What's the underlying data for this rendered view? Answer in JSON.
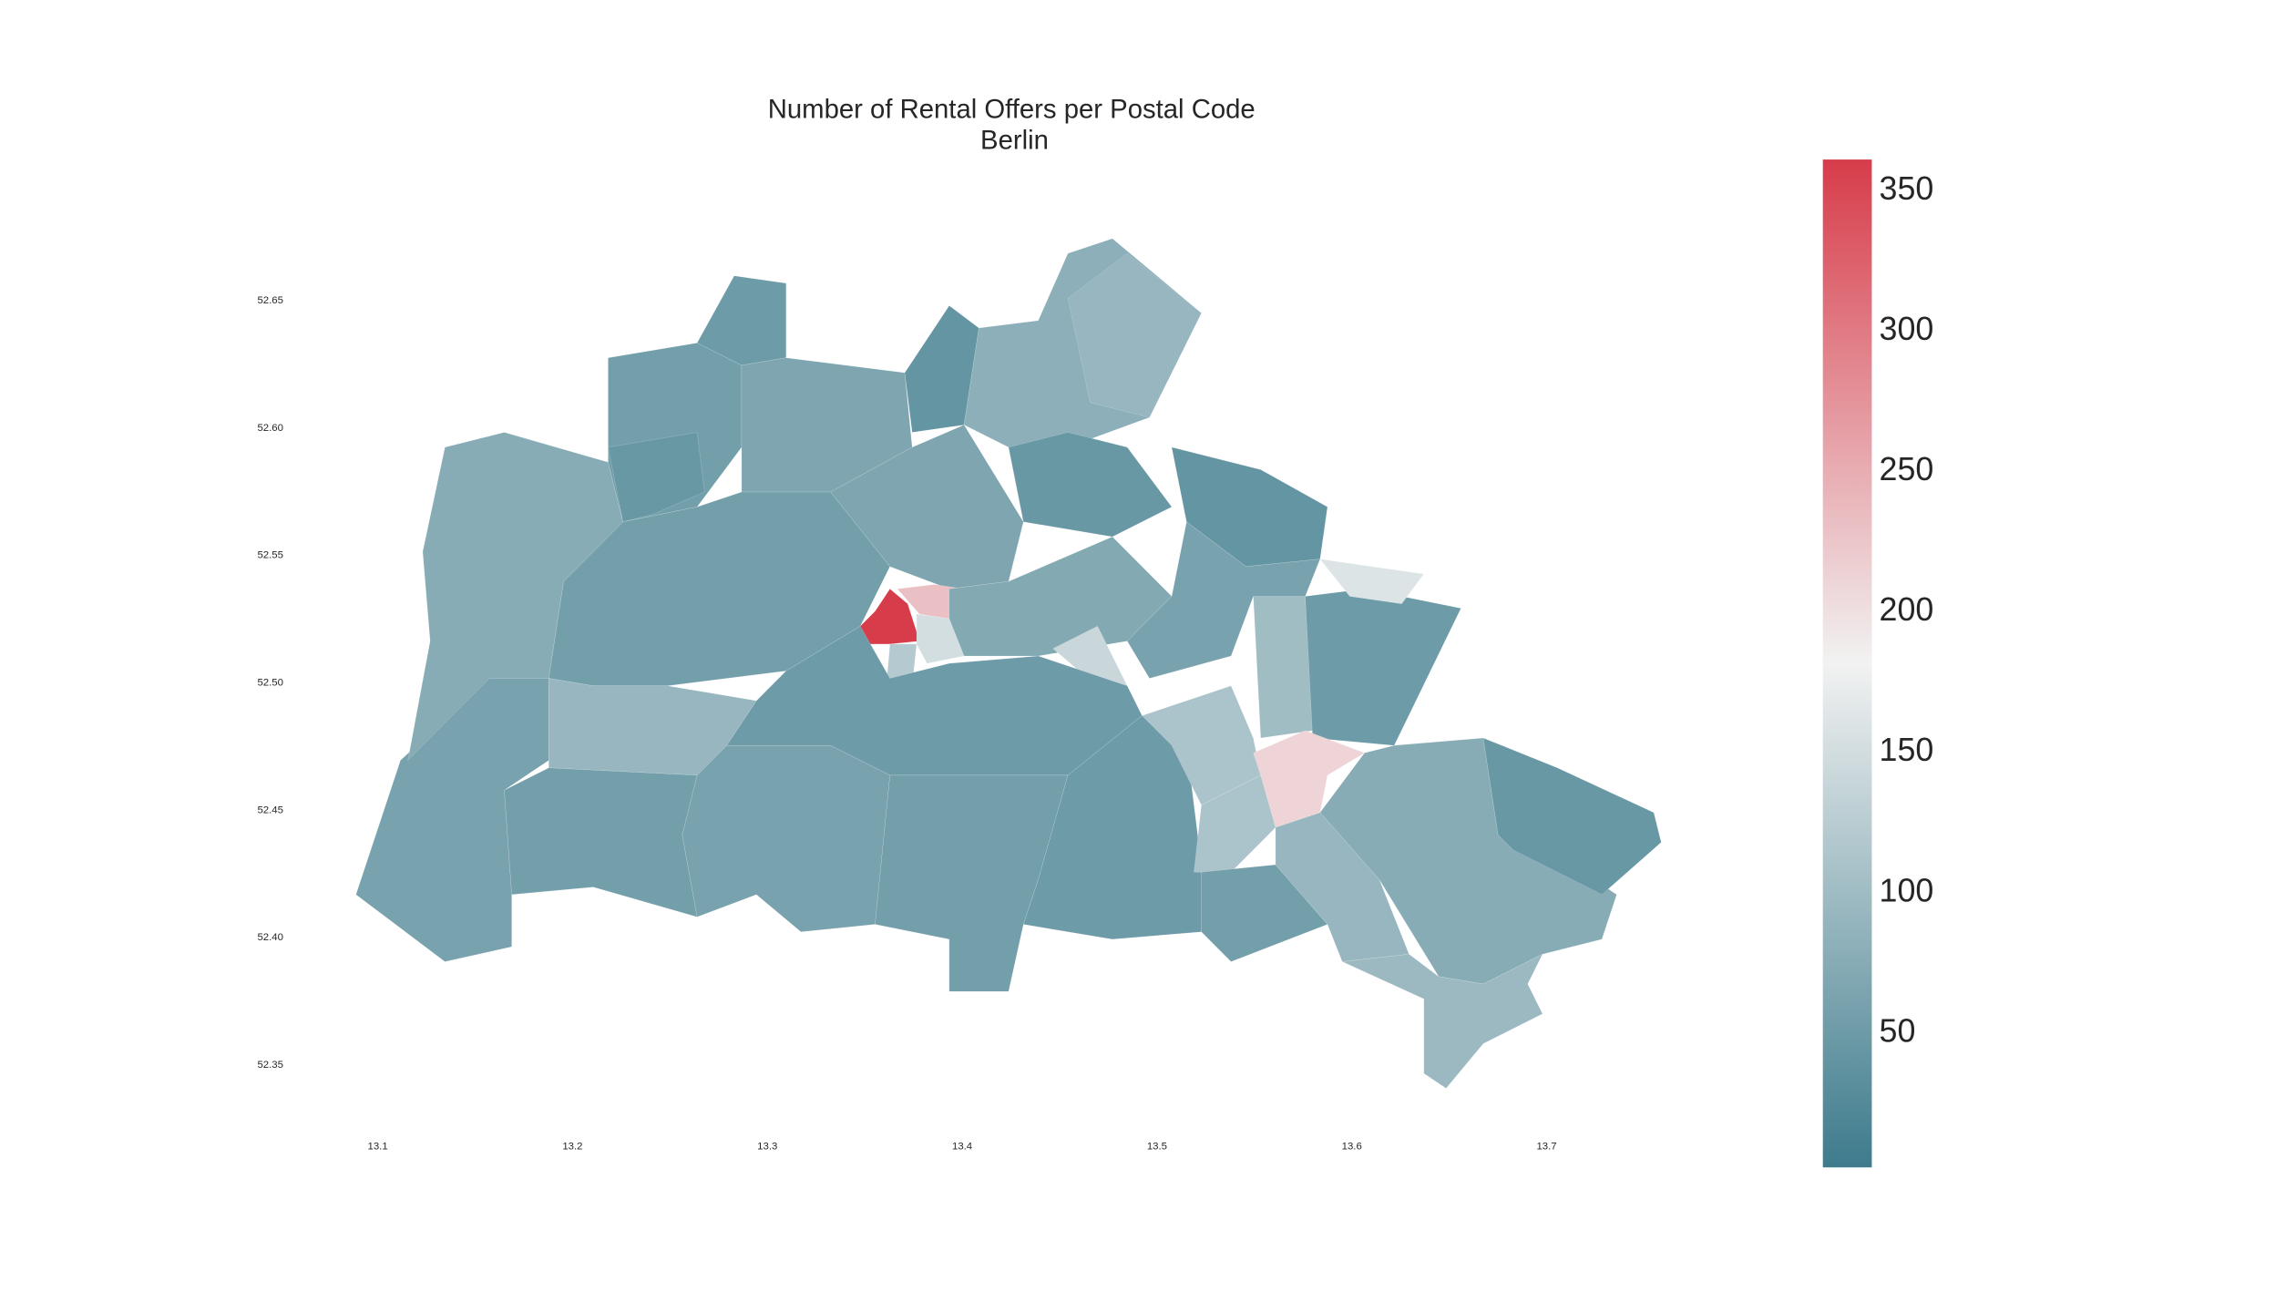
{
  "chart_data": {
    "type": "choropleth",
    "title": "Number of Rental Offers per Postal Code",
    "subtitle": "Berlin",
    "values": [
      60,
      75,
      55,
      45,
      50,
      65,
      40,
      80,
      90,
      45,
      40,
      55,
      65,
      360,
      230,
      150,
      120,
      70,
      140,
      160,
      100,
      50,
      160,
      60,
      90,
      55,
      60,
      50,
      55,
      50,
      110,
      210,
      110,
      55,
      90,
      75,
      45,
      95
    ],
    "xlim": [
      13.05,
      13.79
    ],
    "xticks": [
      13.1,
      13.2,
      13.3,
      13.4,
      13.5,
      13.6,
      13.7
    ],
    "ylim": [
      52.32,
      52.7
    ],
    "yticks": [
      52.35,
      {
        "value": 52.4,
        "label": "52.40"
      },
      52.45,
      {
        "value": 52.5,
        "label": "52.50"
      },
      52.55,
      {
        "value": 52.6,
        "label": "52.60"
      },
      52.65
    ],
    "clim": [
      1,
      360
    ],
    "cticks": [
      50,
      100,
      150,
      200,
      250,
      300,
      350
    ],
    "colormap": [
      "#3d7b8c",
      "#f2f2f2",
      "#d73c4a"
    ]
  }
}
